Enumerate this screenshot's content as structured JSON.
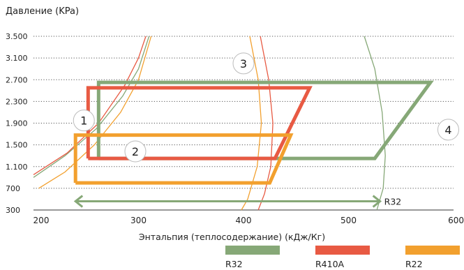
{
  "chart_data": {
    "type": "line",
    "title": "Давление (KPa)",
    "xlabel": "Энтальпия (теплосодержание) (кДж/Кг)",
    "ylabel": "Давление (KPa)",
    "xlim": [
      200,
      600
    ],
    "ylim": [
      300,
      3500
    ],
    "x_ticks": [
      "200",
      "300",
      "400",
      "500",
      "600"
    ],
    "y_ticks": [
      "300",
      "700",
      "1.100",
      "1.500",
      "1.900",
      "2.300",
      "2.700",
      "3.100",
      "3.500"
    ],
    "grid": "horizontal-dotted",
    "legend_position": "bottom-right",
    "colors": {
      "R32": "#86a877",
      "R410A": "#e85a43",
      "R22": "#f2a02e",
      "arrow": "#86a877"
    },
    "series": [
      {
        "name": "R32",
        "points": [
          [
            262,
            1250
          ],
          [
            262,
            2650
          ],
          [
            578,
            2650
          ],
          [
            525,
            1250
          ],
          [
            262,
            1250
          ]
        ]
      },
      {
        "name": "R410A",
        "points": [
          [
            252,
            1250
          ],
          [
            252,
            2550
          ],
          [
            463,
            2550
          ],
          [
            430,
            1250
          ],
          [
            252,
            1250
          ]
        ]
      },
      {
        "name": "R22",
        "points": [
          [
            240,
            800
          ],
          [
            240,
            1680
          ],
          [
            445,
            1680
          ],
          [
            425,
            800
          ],
          [
            240,
            800
          ]
        ]
      }
    ],
    "saturation_curves": [
      {
        "name": "R32",
        "side": "liquid",
        "points": [
          [
            200,
            900
          ],
          [
            230,
            1300
          ],
          [
            260,
            1800
          ],
          [
            285,
            2400
          ],
          [
            300,
            2900
          ],
          [
            310,
            3500
          ]
        ]
      },
      {
        "name": "R410A",
        "side": "liquid",
        "points": [
          [
            200,
            950
          ],
          [
            232,
            1350
          ],
          [
            262,
            1900
          ],
          [
            287,
            2600
          ],
          [
            300,
            3100
          ],
          [
            307,
            3500
          ]
        ]
      },
      {
        "name": "R22",
        "side": "liquid",
        "points": [
          [
            205,
            700
          ],
          [
            230,
            1000
          ],
          [
            258,
            1500
          ],
          [
            283,
            2100
          ],
          [
            300,
            2700
          ],
          [
            312,
            3500
          ]
        ]
      },
      {
        "name": "R32",
        "side": "vapor",
        "points": [
          [
            515,
            3500
          ],
          [
            525,
            2900
          ],
          [
            532,
            2100
          ],
          [
            535,
            1300
          ],
          [
            533,
            700
          ],
          [
            527,
            300
          ]
        ]
      },
      {
        "name": "R410A",
        "side": "vapor",
        "points": [
          [
            416,
            3500
          ],
          [
            424,
            2700
          ],
          [
            428,
            1900
          ],
          [
            426,
            1100
          ],
          [
            420,
            600
          ],
          [
            414,
            300
          ]
        ]
      },
      {
        "name": "R22",
        "side": "vapor",
        "points": [
          [
            406,
            3500
          ],
          [
            414,
            2700
          ],
          [
            417,
            1900
          ],
          [
            413,
            1100
          ],
          [
            404,
            500
          ],
          [
            398,
            300
          ]
        ]
      }
    ],
    "arrow": {
      "from": 240,
      "to": 530,
      "y": 460,
      "label": "R32"
    },
    "annotations": [
      {
        "label": "1",
        "x": 248,
        "y": 1950
      },
      {
        "label": "2",
        "x": 297,
        "y": 1380
      },
      {
        "label": "3",
        "x": 400,
        "y": 3000
      },
      {
        "label": "4",
        "x": 595,
        "y": 1780
      }
    ],
    "legend": [
      {
        "label": "R32",
        "color": "#86a877"
      },
      {
        "label": "R410A",
        "color": "#e85a43"
      },
      {
        "label": "R22",
        "color": "#f2a02e"
      }
    ]
  }
}
